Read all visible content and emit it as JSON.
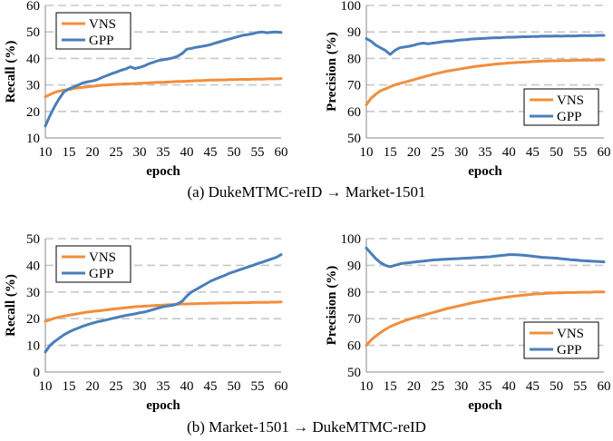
{
  "captions": {
    "a": "(a) DukeMTMC-reID → Market-1501",
    "b": "(b) Market-1501 → DukeMTMC-reID"
  },
  "colors": {
    "VNS": "#F28E3C",
    "GPP": "#4A7EBB",
    "grid": "#c8c8c8"
  },
  "chart_data": [
    {
      "type": "line",
      "xlabel": "epoch",
      "ylabel": "Recall (%)",
      "xlim": [
        10,
        60
      ],
      "xticks": [
        10,
        15,
        20,
        25,
        30,
        35,
        40,
        45,
        50,
        55,
        60
      ],
      "ylim": [
        10,
        60
      ],
      "yticks": [
        10,
        20,
        30,
        40,
        50,
        60
      ],
      "grid": "horizontal dashed",
      "legend_position": "top-left",
      "x": [
        10,
        11,
        12,
        13,
        14,
        15,
        16,
        17,
        18,
        19,
        20,
        21,
        22,
        23,
        24,
        25,
        26,
        27,
        28,
        29,
        30,
        31,
        32,
        33,
        34,
        35,
        36,
        37,
        38,
        39,
        40,
        41,
        42,
        43,
        44,
        45,
        46,
        47,
        48,
        49,
        50,
        51,
        52,
        53,
        54,
        55,
        56,
        57,
        58,
        59,
        60
      ],
      "series": [
        {
          "name": "VNS",
          "values": [
            25.5,
            26.4,
            27.2,
            27.7,
            28.0,
            28.3,
            28.6,
            28.9,
            29.1,
            29.3,
            29.5,
            29.7,
            29.9,
            30.0,
            30.1,
            30.2,
            30.3,
            30.4,
            30.4,
            30.5,
            30.6,
            30.7,
            30.8,
            30.9,
            31.0,
            31.0,
            31.1,
            31.2,
            31.3,
            31.3,
            31.4,
            31.5,
            31.6,
            31.6,
            31.7,
            31.8,
            31.8,
            31.9,
            31.9,
            32.0,
            32.0,
            32.1,
            32.1,
            32.1,
            32.2,
            32.2,
            32.2,
            32.3,
            32.3,
            32.3,
            32.4
          ]
        },
        {
          "name": "GPP",
          "values": [
            14.5,
            18.5,
            22.0,
            25.0,
            27.5,
            28.5,
            29.2,
            30.0,
            30.8,
            31.2,
            31.5,
            32.0,
            32.8,
            33.5,
            34.2,
            34.8,
            35.5,
            36.0,
            36.8,
            36.2,
            36.6,
            37.2,
            38.0,
            38.6,
            39.2,
            39.5,
            39.8,
            40.2,
            40.8,
            41.8,
            43.5,
            43.8,
            44.2,
            44.5,
            44.8,
            45.2,
            45.8,
            46.3,
            46.8,
            47.3,
            47.8,
            48.3,
            48.8,
            49.0,
            49.3,
            49.8,
            50.0,
            49.7,
            49.9,
            50.0,
            49.8
          ]
        }
      ]
    },
    {
      "type": "line",
      "xlabel": "epoch",
      "ylabel": "Precision (%)",
      "xlim": [
        10,
        60
      ],
      "xticks": [
        10,
        15,
        20,
        25,
        30,
        35,
        40,
        45,
        50,
        55,
        60
      ],
      "ylim": [
        50,
        100
      ],
      "yticks": [
        50,
        60,
        70,
        80,
        90,
        100
      ],
      "grid": "horizontal dashed",
      "legend_position": "bottom-right",
      "x": [
        10,
        11,
        12,
        13,
        14,
        15,
        16,
        17,
        18,
        19,
        20,
        21,
        22,
        23,
        24,
        25,
        26,
        27,
        28,
        29,
        30,
        31,
        32,
        33,
        34,
        35,
        36,
        37,
        38,
        39,
        40,
        41,
        42,
        43,
        44,
        45,
        46,
        47,
        48,
        49,
        50,
        51,
        52,
        53,
        54,
        55,
        56,
        57,
        58,
        59,
        60
      ],
      "series": [
        {
          "name": "VNS",
          "values": [
            62.5,
            65.0,
            66.5,
            67.8,
            68.5,
            69.3,
            70.0,
            70.5,
            71.0,
            71.5,
            72.0,
            72.5,
            73.0,
            73.5,
            74.0,
            74.4,
            74.8,
            75.2,
            75.5,
            75.8,
            76.1,
            76.4,
            76.7,
            77.0,
            77.2,
            77.4,
            77.6,
            77.8,
            78.0,
            78.1,
            78.3,
            78.4,
            78.5,
            78.6,
            78.7,
            78.8,
            78.9,
            79.0,
            79.0,
            79.1,
            79.1,
            79.2,
            79.2,
            79.2,
            79.3,
            79.3,
            79.3,
            79.4,
            79.4,
            79.4,
            79.5
          ]
        },
        {
          "name": "GPP",
          "values": [
            87.5,
            86.5,
            85.0,
            84.0,
            83.0,
            81.5,
            83.0,
            84.0,
            84.3,
            84.6,
            85.0,
            85.5,
            85.8,
            85.5,
            85.8,
            86.0,
            86.3,
            86.5,
            86.5,
            86.8,
            87.0,
            87.1,
            87.3,
            87.4,
            87.5,
            87.6,
            87.7,
            87.8,
            87.8,
            87.9,
            88.0,
            88.0,
            88.1,
            88.2,
            88.2,
            88.3,
            88.3,
            88.4,
            88.4,
            88.4,
            88.5,
            88.4,
            88.5,
            88.5,
            88.5,
            88.6,
            88.6,
            88.6,
            88.6,
            88.7,
            88.7
          ]
        }
      ]
    },
    {
      "type": "line",
      "xlabel": "epoch",
      "ylabel": "Recall (%)",
      "xlim": [
        10,
        60
      ],
      "xticks": [
        10,
        15,
        20,
        25,
        30,
        35,
        40,
        45,
        50,
        55,
        60
      ],
      "ylim": [
        0,
        50
      ],
      "yticks": [
        0,
        10,
        20,
        30,
        40,
        50
      ],
      "grid": "horizontal dashed",
      "legend_position": "top-left",
      "x": [
        10,
        11,
        12,
        13,
        14,
        15,
        16,
        17,
        18,
        19,
        20,
        21,
        22,
        23,
        24,
        25,
        26,
        27,
        28,
        29,
        30,
        31,
        32,
        33,
        34,
        35,
        36,
        37,
        38,
        39,
        40,
        41,
        42,
        43,
        44,
        45,
        46,
        47,
        48,
        49,
        50,
        51,
        52,
        53,
        54,
        55,
        56,
        57,
        58,
        59,
        60
      ],
      "series": [
        {
          "name": "VNS",
          "values": [
            19.0,
            19.6,
            20.2,
            20.6,
            21.0,
            21.3,
            21.6,
            21.9,
            22.2,
            22.5,
            22.7,
            22.9,
            23.1,
            23.3,
            23.5,
            23.7,
            23.9,
            24.1,
            24.3,
            24.5,
            24.6,
            24.7,
            24.8,
            24.9,
            25.0,
            25.1,
            25.2,
            25.3,
            25.4,
            25.5,
            25.5,
            25.6,
            25.6,
            25.7,
            25.7,
            25.8,
            25.8,
            25.9,
            25.9,
            25.9,
            26.0,
            26.0,
            26.0,
            26.0,
            26.1,
            26.1,
            26.1,
            26.1,
            26.2,
            26.2,
            26.3
          ]
        },
        {
          "name": "GPP",
          "values": [
            7.5,
            10.0,
            11.5,
            12.8,
            14.0,
            15.0,
            15.8,
            16.5,
            17.2,
            17.8,
            18.3,
            18.8,
            19.2,
            19.6,
            20.0,
            20.4,
            20.8,
            21.2,
            21.5,
            21.8,
            22.2,
            22.5,
            23.0,
            23.5,
            24.0,
            24.5,
            24.8,
            25.0,
            25.5,
            26.5,
            28.5,
            30.0,
            31.0,
            32.0,
            33.0,
            34.0,
            34.8,
            35.5,
            36.2,
            37.0,
            37.6,
            38.2,
            38.8,
            39.4,
            40.0,
            40.6,
            41.2,
            41.8,
            42.4,
            43.0,
            44.0
          ]
        }
      ]
    },
    {
      "type": "line",
      "xlabel": "epoch",
      "ylabel": "Precision (%)",
      "xlim": [
        10,
        60
      ],
      "xticks": [
        10,
        15,
        20,
        25,
        30,
        35,
        40,
        45,
        50,
        55,
        60
      ],
      "ylim": [
        50,
        100
      ],
      "yticks": [
        50,
        60,
        70,
        80,
        90,
        100
      ],
      "grid": "horizontal dashed",
      "legend_position": "bottom-right",
      "x": [
        10,
        11,
        12,
        13,
        14,
        15,
        16,
        17,
        18,
        19,
        20,
        21,
        22,
        23,
        24,
        25,
        26,
        27,
        28,
        29,
        30,
        31,
        32,
        33,
        34,
        35,
        36,
        37,
        38,
        39,
        40,
        41,
        42,
        43,
        44,
        45,
        46,
        47,
        48,
        49,
        50,
        51,
        52,
        53,
        54,
        55,
        56,
        57,
        58,
        59,
        60
      ],
      "series": [
        {
          "name": "VNS",
          "values": [
            60.0,
            62.0,
            63.5,
            64.8,
            66.0,
            67.0,
            67.8,
            68.5,
            69.2,
            69.8,
            70.3,
            70.8,
            71.3,
            71.8,
            72.3,
            72.8,
            73.3,
            73.8,
            74.2,
            74.6,
            75.0,
            75.4,
            75.8,
            76.2,
            76.5,
            76.8,
            77.1,
            77.4,
            77.7,
            78.0,
            78.2,
            78.4,
            78.6,
            78.8,
            79.0,
            79.2,
            79.3,
            79.4,
            79.5,
            79.6,
            79.7,
            79.7,
            79.8,
            79.8,
            79.8,
            79.9,
            79.9,
            79.9,
            80.0,
            80.0,
            80.0
          ]
        },
        {
          "name": "GPP",
          "values": [
            96.5,
            94.5,
            92.5,
            91.0,
            90.0,
            89.5,
            90.0,
            90.5,
            90.8,
            91.0,
            91.2,
            91.4,
            91.6,
            91.8,
            92.0,
            92.1,
            92.2,
            92.3,
            92.4,
            92.5,
            92.6,
            92.7,
            92.8,
            92.9,
            93.0,
            93.1,
            93.2,
            93.4,
            93.6,
            93.8,
            94.0,
            94.0,
            93.9,
            93.8,
            93.6,
            93.4,
            93.2,
            93.0,
            92.9,
            92.8,
            92.7,
            92.5,
            92.3,
            92.1,
            92.0,
            91.8,
            91.7,
            91.6,
            91.5,
            91.4,
            91.3
          ]
        }
      ]
    }
  ]
}
